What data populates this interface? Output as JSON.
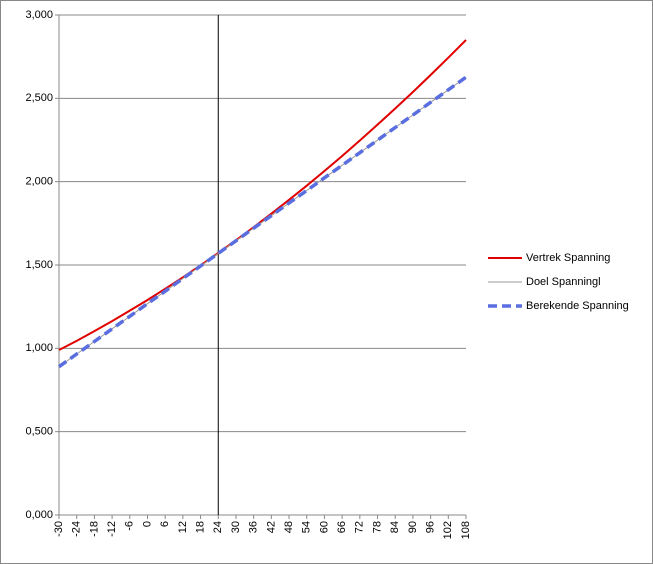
{
  "chart_data": {
    "type": "line",
    "x": [
      -30,
      -24,
      -18,
      -12,
      -6,
      0,
      6,
      12,
      18,
      24,
      30,
      36,
      42,
      48,
      54,
      60,
      66,
      72,
      78,
      84,
      90,
      96,
      102,
      108
    ],
    "xlim": [
      -30,
      108
    ],
    "xticks": [
      -30,
      -24,
      -18,
      -12,
      -6,
      0,
      6,
      12,
      18,
      24,
      30,
      36,
      42,
      48,
      54,
      60,
      66,
      72,
      78,
      84,
      90,
      96,
      102,
      108
    ],
    "ylim": [
      0,
      3
    ],
    "yticks": [
      {
        "value": 0,
        "label": "0,000"
      },
      {
        "value": 0.5,
        "label": "0,500"
      },
      {
        "value": 1,
        "label": "1,000"
      },
      {
        "value": 1.5,
        "label": "1,500"
      },
      {
        "value": 2,
        "label": "2,000"
      },
      {
        "value": 2.5,
        "label": "2,500"
      },
      {
        "value": 3,
        "label": "3,000"
      }
    ],
    "grid": true,
    "vline": 24,
    "legend": "right",
    "series": [
      {
        "name": "Vertrek Spanning",
        "color": "#e00000",
        "width": 2,
        "dashed": false,
        "values": [
          0.99,
          1.045,
          1.103,
          1.163,
          1.226,
          1.29,
          1.357,
          1.426,
          1.498,
          1.572,
          1.648,
          1.727,
          1.808,
          1.891,
          1.976,
          2.064,
          2.154,
          2.247,
          2.342,
          2.439,
          2.538,
          2.64,
          2.744,
          2.85
        ]
      },
      {
        "name": "Doel Spanningl",
        "color": "#999999",
        "width": 1,
        "dashed": false,
        "values": [
          0.89,
          0.966,
          1.041,
          1.117,
          1.192,
          1.268,
          1.343,
          1.419,
          1.494,
          1.57,
          1.645,
          1.721,
          1.796,
          1.872,
          1.947,
          2.023,
          2.098,
          2.174,
          2.249,
          2.325,
          2.4,
          2.476,
          2.551,
          2.627
        ]
      },
      {
        "name": "Berekende Spanning",
        "color": "#5a6ee0",
        "width": 3.5,
        "dashed": true,
        "values": [
          0.89,
          0.966,
          1.041,
          1.117,
          1.192,
          1.268,
          1.343,
          1.419,
          1.494,
          1.57,
          1.645,
          1.721,
          1.796,
          1.872,
          1.947,
          2.023,
          2.098,
          2.174,
          2.249,
          2.325,
          2.4,
          2.476,
          2.551,
          2.627
        ]
      }
    ]
  }
}
